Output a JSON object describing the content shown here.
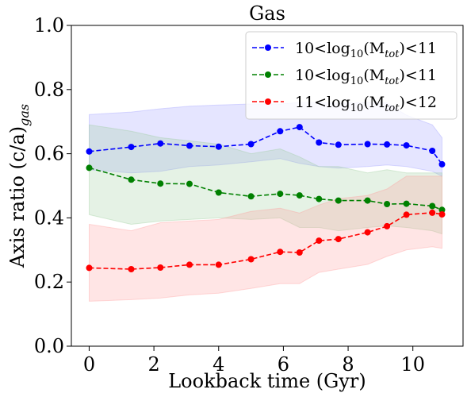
{
  "chart_data": {
    "type": "line",
    "title": "Gas",
    "xlabel": "Lookback time (Gyr)",
    "ylabel_main": "Axis ratio (c/a)",
    "ylabel_sub": "gas",
    "xlim": [
      -0.55,
      11.55
    ],
    "ylim": [
      0.0,
      1.0
    ],
    "xticks": [
      0,
      2,
      4,
      6,
      8,
      10
    ],
    "xtick_labels": [
      "0",
      "2",
      "4",
      "6",
      "8",
      "10"
    ],
    "yticks": [
      0.0,
      0.2,
      0.4,
      0.6,
      0.8,
      1.0
    ],
    "ytick_labels": [
      "0.0",
      "0.2",
      "0.4",
      "0.6",
      "0.8",
      "1.0"
    ],
    "grid": false,
    "legend_position": "top-right",
    "x": [
      0.0,
      1.3,
      2.2,
      3.1,
      4.0,
      5.0,
      5.9,
      6.5,
      7.1,
      7.7,
      8.6,
      9.2,
      9.8,
      10.6,
      10.9
    ],
    "series": [
      {
        "legend_main": "10<log",
        "legend_sub": "10",
        "legend_mid": "(M",
        "legend_sub2": "tot",
        "legend_end": ")<11",
        "color": "#0000ff",
        "band_color": "#9999ff",
        "values": [
          0.607,
          0.621,
          0.632,
          0.625,
          0.622,
          0.63,
          0.67,
          0.683,
          0.635,
          0.628,
          0.63,
          0.629,
          0.626,
          0.609,
          0.567
        ],
        "upper": [
          0.722,
          0.73,
          0.74,
          0.748,
          0.752,
          0.755,
          0.755,
          0.76,
          0.76,
          0.757,
          0.76,
          0.758,
          0.72,
          0.69,
          0.65
        ],
        "lower": [
          0.55,
          0.54,
          0.545,
          0.56,
          0.565,
          0.575,
          0.585,
          0.57,
          0.56,
          0.555,
          0.56,
          0.565,
          0.56,
          0.545,
          0.53
        ]
      },
      {
        "legend_main": "10<log",
        "legend_sub": "10",
        "legend_mid": "(M",
        "legend_sub2": "tot",
        "legend_end": ")<11",
        "color": "#008000",
        "band_color": "#99cc99",
        "values": [
          0.556,
          0.519,
          0.507,
          0.506,
          0.479,
          0.467,
          0.475,
          0.47,
          0.459,
          0.454,
          0.454,
          0.443,
          0.444,
          0.437,
          0.425
        ],
        "upper": [
          0.69,
          0.67,
          0.65,
          0.64,
          0.63,
          0.6,
          0.615,
          0.59,
          0.56,
          0.56,
          0.54,
          0.55,
          0.54,
          0.54,
          0.54
        ],
        "lower": [
          0.41,
          0.38,
          0.39,
          0.395,
          0.4,
          0.395,
          0.4,
          0.37,
          0.37,
          0.36,
          0.37,
          0.375,
          0.37,
          0.36,
          0.35
        ]
      },
      {
        "legend_main": "11<log",
        "legend_sub": "10",
        "legend_mid": "(M",
        "legend_sub2": "tot",
        "legend_end": ")<12",
        "color": "#ff0000",
        "band_color": "#ff9999",
        "values": [
          0.244,
          0.24,
          0.245,
          0.254,
          0.254,
          0.271,
          0.294,
          0.292,
          0.329,
          0.334,
          0.355,
          0.374,
          0.41,
          0.416,
          0.411
        ],
        "upper": [
          0.38,
          0.36,
          0.385,
          0.39,
          0.395,
          0.42,
          0.43,
          0.415,
          0.44,
          0.46,
          0.47,
          0.49,
          0.53,
          0.53,
          0.53
        ],
        "lower": [
          0.14,
          0.145,
          0.15,
          0.16,
          0.165,
          0.18,
          0.195,
          0.195,
          0.23,
          0.24,
          0.255,
          0.28,
          0.3,
          0.31,
          0.305
        ]
      }
    ]
  }
}
